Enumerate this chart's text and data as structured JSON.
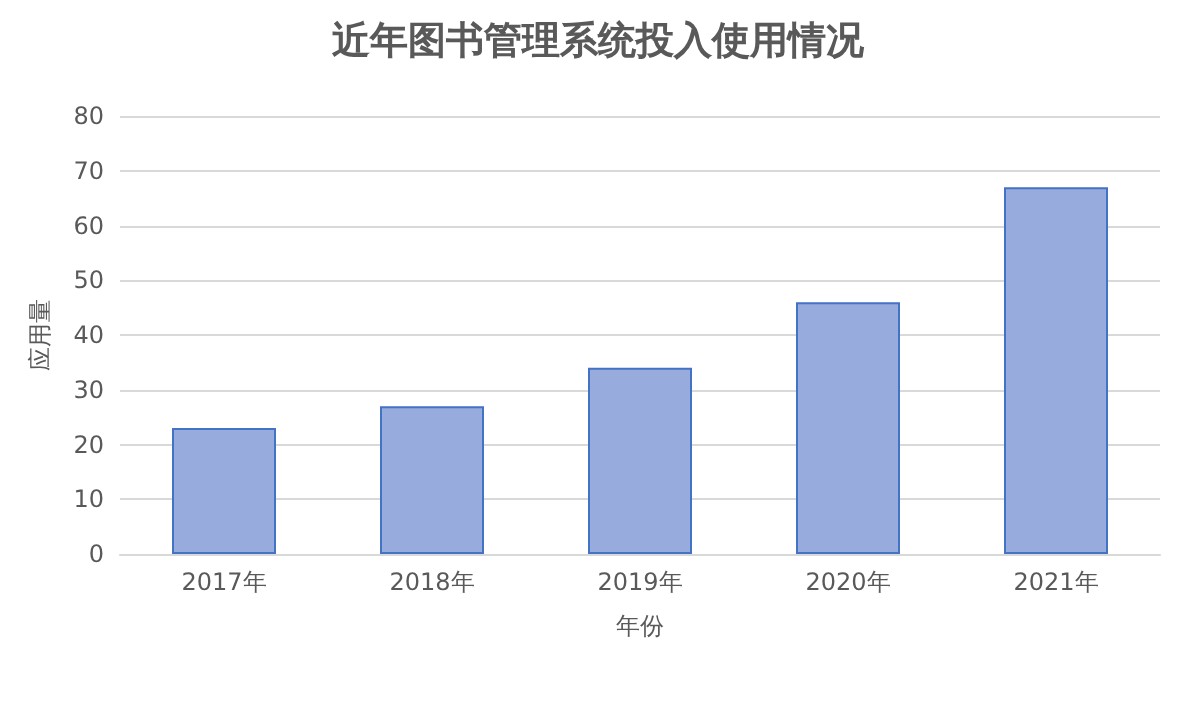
{
  "chart_data": {
    "type": "bar",
    "title": "近年图书管理系统投入使用情况",
    "xlabel": "年份",
    "ylabel": "应用量",
    "categories": [
      "2017年",
      "2018年",
      "2019年",
      "2020年",
      "2021年"
    ],
    "values": [
      23,
      27,
      34,
      46,
      67
    ],
    "color": "#98abdd",
    "ylim": [
      0,
      80
    ],
    "yticks": [
      0,
      10,
      20,
      30,
      40,
      50,
      60,
      70,
      80
    ],
    "grid": "y"
  }
}
